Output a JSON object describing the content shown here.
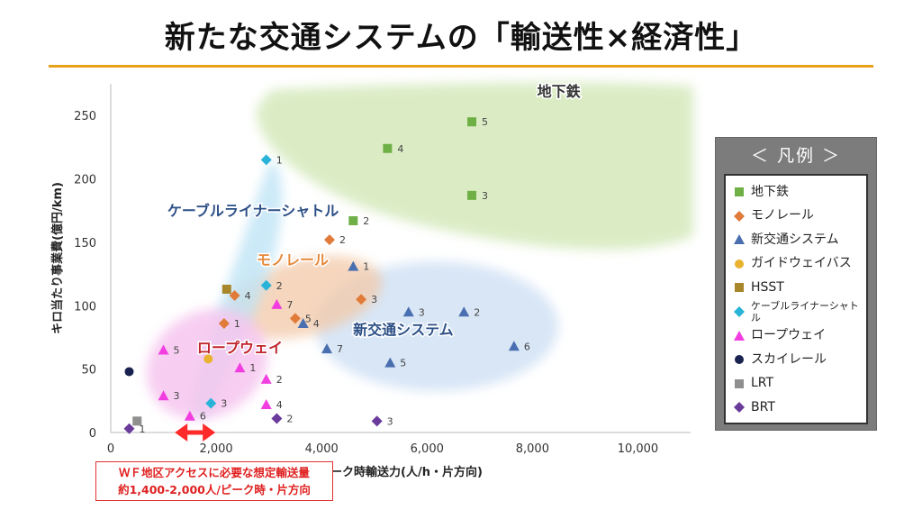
{
  "title": "新たな交通システムの「輸送性×経済性」",
  "colors": {
    "accent": "#e8a21a",
    "callout": "#e02020"
  },
  "legend": {
    "title": "＜ 凡例 ＞",
    "items": [
      {
        "label": "地下鉄",
        "shape": "square",
        "color": "#6fb046"
      },
      {
        "label": "モノレール",
        "shape": "diamond",
        "color": "#e07b3a"
      },
      {
        "label": "新交通システム",
        "shape": "triangle",
        "color": "#4a6fb0"
      },
      {
        "label": "ガイドウェイバス",
        "shape": "circle",
        "color": "#e9b22f"
      },
      {
        "label": "HSST",
        "shape": "square",
        "color": "#a8862a"
      },
      {
        "label": "ケーブルライナーシャトル",
        "shape": "diamond",
        "color": "#2ab3d8"
      },
      {
        "label": "ロープウェイ",
        "shape": "triangle",
        "color": "#f23ee0"
      },
      {
        "label": "スカイレール",
        "shape": "circle",
        "color": "#1a2350"
      },
      {
        "label": "LRT",
        "shape": "square",
        "color": "#8f8f8f"
      },
      {
        "label": "BRT",
        "shape": "diamond",
        "color": "#6a3b9a"
      }
    ]
  },
  "callout": {
    "line1": "ＷＦ地区アクセスに必要な想定輸送量",
    "line2": "約1,400-2,000人/ピーク時・片方向"
  },
  "chart_data": {
    "type": "scatter",
    "xlabel": "ピーク時輸送力(人/h・片方向)",
    "ylabel": "キロ当たり事業費(億円/km)",
    "xlim": [
      0,
      11000
    ],
    "ylim": [
      0,
      275
    ],
    "xticks": [
      {
        "v": 0,
        "label": "0"
      },
      {
        "v": 2000,
        "label": "2,000"
      },
      {
        "v": 4000,
        "label": "4,000"
      },
      {
        "v": 6000,
        "label": "6,000"
      },
      {
        "v": 8000,
        "label": "8,000"
      },
      {
        "v": 10000,
        "label": "10,000"
      }
    ],
    "yticks": [
      {
        "v": 0,
        "label": "0"
      },
      {
        "v": 50,
        "label": "50"
      },
      {
        "v": 100,
        "label": "100"
      },
      {
        "v": 150,
        "label": "150"
      },
      {
        "v": 200,
        "label": "200"
      },
      {
        "v": 250,
        "label": "250"
      }
    ],
    "region_labels": [
      {
        "text": "地下鉄",
        "x": 8500,
        "y": 265,
        "color": "#333333"
      },
      {
        "text": "ケーブルライナーシャトル",
        "x": 2700,
        "y": 171,
        "color": "#2c4f86"
      },
      {
        "text": "モノレール",
        "x": 3450,
        "y": 132,
        "color": "#e68a3c"
      },
      {
        "text": "新交通システム",
        "x": 5550,
        "y": 77,
        "color": "#2c4f86"
      },
      {
        "text": "ロープウェイ",
        "x": 2450,
        "y": 63,
        "color": "#c0242c"
      }
    ],
    "range_arrow": {
      "x1": 1250,
      "x2": 1950,
      "y": 0
    },
    "series": [
      {
        "name": "地下鉄",
        "points": [
          {
            "x": 4600,
            "y": 167,
            "label": "2"
          },
          {
            "x": 5250,
            "y": 224,
            "label": "4"
          },
          {
            "x": 6850,
            "y": 245,
            "label": "5"
          },
          {
            "x": 6850,
            "y": 187,
            "label": "3"
          }
        ]
      },
      {
        "name": "モノレール",
        "points": [
          {
            "x": 4150,
            "y": 152,
            "label": "2"
          },
          {
            "x": 4750,
            "y": 105,
            "label": "3"
          },
          {
            "x": 2350,
            "y": 108,
            "label": "4"
          },
          {
            "x": 2150,
            "y": 86,
            "label": "1"
          },
          {
            "x": 3500,
            "y": 90,
            "label": "5"
          }
        ]
      },
      {
        "name": "新交通システム",
        "points": [
          {
            "x": 4600,
            "y": 131,
            "label": "1"
          },
          {
            "x": 5650,
            "y": 95,
            "label": "3"
          },
          {
            "x": 6700,
            "y": 95,
            "label": "2"
          },
          {
            "x": 3650,
            "y": 86,
            "label": "4"
          },
          {
            "x": 4100,
            "y": 66,
            "label": "7"
          },
          {
            "x": 5300,
            "y": 55,
            "label": "5"
          },
          {
            "x": 7650,
            "y": 68,
            "label": "6"
          }
        ]
      },
      {
        "name": "ガイドウェイバス",
        "points": [
          {
            "x": 1850,
            "y": 58,
            "label": ""
          }
        ]
      },
      {
        "name": "HSST",
        "points": [
          {
            "x": 2200,
            "y": 113,
            "label": ""
          }
        ]
      },
      {
        "name": "ケーブルライナーシャトル",
        "points": [
          {
            "x": 2950,
            "y": 215,
            "label": "1"
          },
          {
            "x": 2950,
            "y": 116,
            "label": "2"
          },
          {
            "x": 1900,
            "y": 23,
            "label": "3"
          }
        ]
      },
      {
        "name": "ロープウェイ",
        "points": [
          {
            "x": 1000,
            "y": 65,
            "label": "5"
          },
          {
            "x": 1000,
            "y": 29,
            "label": "3"
          },
          {
            "x": 2450,
            "y": 51,
            "label": "1"
          },
          {
            "x": 2950,
            "y": 42,
            "label": "2"
          },
          {
            "x": 3150,
            "y": 101,
            "label": "7"
          },
          {
            "x": 2950,
            "y": 22,
            "label": "4"
          },
          {
            "x": 1500,
            "y": 13,
            "label": "6"
          }
        ]
      },
      {
        "name": "スカイレール",
        "points": [
          {
            "x": 350,
            "y": 48,
            "label": ""
          }
        ]
      },
      {
        "name": "LRT",
        "points": [
          {
            "x": 500,
            "y": 9,
            "label": ""
          }
        ]
      },
      {
        "name": "BRT",
        "points": [
          {
            "x": 350,
            "y": 3,
            "label": "1"
          },
          {
            "x": 3150,
            "y": 11,
            "label": "2"
          },
          {
            "x": 5050,
            "y": 9,
            "label": "3"
          }
        ]
      }
    ]
  }
}
